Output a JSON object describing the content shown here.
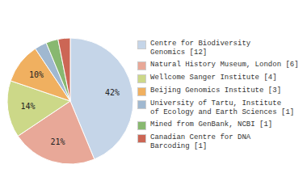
{
  "chart_data": {
    "type": "pie",
    "categories": [
      "Centre for Biodiversity\nGenomics [12]",
      "Natural History Museum, London [6]",
      "Wellcome Sanger Institute [4]",
      "Beijing Genomics Institute [3]",
      "University of Tartu, Institute\nof Ecology and Earth Sciences [1]",
      "Mined from GenBank, NCBI [1]",
      "Canadian Centre for DNA\nBarcoding [1]"
    ],
    "values": [
      42,
      21,
      14,
      10,
      3,
      3,
      3
    ],
    "value_labels": [
      "42%",
      "21%",
      "14%",
      "10%",
      null,
      null,
      null
    ],
    "colors": [
      "#c5d5e8",
      "#e8a898",
      "#ccd888",
      "#f0b060",
      "#a0b8d0",
      "#88b870",
      "#cc6655"
    ],
    "data_labels": true,
    "legend": "right"
  }
}
